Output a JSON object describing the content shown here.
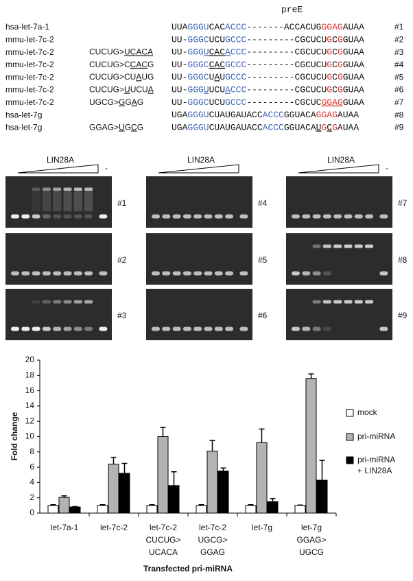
{
  "alignment": {
    "header": "preE",
    "rows": [
      {
        "name": "hsa-let-7a-1",
        "mutation": [],
        "label": "#1",
        "sequence": [
          {
            "text": "UUA"
          },
          {
            "text": "GGGU",
            "color": "#3d67b8"
          },
          {
            "text": "CAC"
          },
          {
            "text": "ACCC",
            "color": "#3d67b8"
          },
          {
            "text": "-------ACCACUG"
          },
          {
            "text": "GGAG",
            "color": "#e0302a"
          },
          {
            "text": "AUAA"
          }
        ]
      },
      {
        "name": "mmu-let-7c-2",
        "mutation": [],
        "label": "#2",
        "sequence": [
          {
            "text": "UU-"
          },
          {
            "text": "GGGC",
            "color": "#3d67b8"
          },
          {
            "text": "UCU"
          },
          {
            "text": "GCCC",
            "color": "#3d67b8"
          },
          {
            "text": "---------CGCUCU"
          },
          {
            "text": "G",
            "color": "#e0302a"
          },
          {
            "text": "C"
          },
          {
            "text": "G",
            "color": "#e0302a"
          },
          {
            "text": "GUAA"
          }
        ]
      },
      {
        "name": "mmu-let-7c-2",
        "mutation": [
          {
            "text": "CUCUG>"
          },
          {
            "text": "UCACA",
            "underline": true
          }
        ],
        "label": "#3",
        "sequence": [
          {
            "text": "UU-"
          },
          {
            "text": "GGG",
            "color": "#3d67b8"
          },
          {
            "text": "U",
            "color": "#3d67b8",
            "underline": true
          },
          {
            "text": "CAC",
            "underline": true
          },
          {
            "text": "A",
            "color": "#3d67b8",
            "underline": true
          },
          {
            "text": "CCC",
            "color": "#3d67b8"
          },
          {
            "text": "---------CGCUCU"
          },
          {
            "text": "G",
            "color": "#e0302a"
          },
          {
            "text": "C"
          },
          {
            "text": "G",
            "color": "#e0302a"
          },
          {
            "text": "GUAA"
          }
        ]
      },
      {
        "name": "mmu-let-7c-2",
        "mutation": [
          {
            "text": "CUCUG>C"
          },
          {
            "text": "CAC",
            "underline": true
          },
          {
            "text": "G"
          }
        ],
        "label": "#4",
        "sequence": [
          {
            "text": "UU-"
          },
          {
            "text": "GGGC",
            "color": "#3d67b8"
          },
          {
            "text": "CAC",
            "underline": true
          },
          {
            "text": "GCCC",
            "color": "#3d67b8"
          },
          {
            "text": "---------CGCUCU"
          },
          {
            "text": "G",
            "color": "#e0302a"
          },
          {
            "text": "C"
          },
          {
            "text": "G",
            "color": "#e0302a"
          },
          {
            "text": "GUAA"
          }
        ]
      },
      {
        "name": "mmu-let-7c-2",
        "mutation": [
          {
            "text": "CUCUG>CU"
          },
          {
            "text": "A",
            "underline": true
          },
          {
            "text": "UG"
          }
        ],
        "label": "#5",
        "sequence": [
          {
            "text": "UU-"
          },
          {
            "text": "GGGC",
            "color": "#3d67b8"
          },
          {
            "text": "U"
          },
          {
            "text": "A",
            "underline": true
          },
          {
            "text": "U"
          },
          {
            "text": "GCCC",
            "color": "#3d67b8"
          },
          {
            "text": "---------CGCUCU"
          },
          {
            "text": "G",
            "color": "#e0302a"
          },
          {
            "text": "C"
          },
          {
            "text": "G",
            "color": "#e0302a"
          },
          {
            "text": "GUAA"
          }
        ]
      },
      {
        "name": "mmu-let-7c-2",
        "mutation": [
          {
            "text": "CUCUG>"
          },
          {
            "text": "U",
            "underline": true
          },
          {
            "text": "UCU"
          },
          {
            "text": "A",
            "underline": true
          }
        ],
        "label": "#6",
        "sequence": [
          {
            "text": "UU-"
          },
          {
            "text": "GGG",
            "color": "#3d67b8"
          },
          {
            "text": "U",
            "color": "#3d67b8",
            "underline": true
          },
          {
            "text": "UCU"
          },
          {
            "text": "A",
            "color": "#3d67b8",
            "underline": true
          },
          {
            "text": "CCC",
            "color": "#3d67b8"
          },
          {
            "text": "---------CGCUCU"
          },
          {
            "text": "G",
            "color": "#e0302a"
          },
          {
            "text": "C"
          },
          {
            "text": "G",
            "color": "#e0302a"
          },
          {
            "text": "GUAA"
          }
        ]
      },
      {
        "name": "mmu-let-7c-2",
        "mutation": [
          {
            "text": "UGCG>"
          },
          {
            "text": "G",
            "underline": true
          },
          {
            "text": "G"
          },
          {
            "text": "A",
            "underline": true
          },
          {
            "text": "G"
          }
        ],
        "label": "#7",
        "sequence": [
          {
            "text": "UU-"
          },
          {
            "text": "GGGC",
            "color": "#3d67b8"
          },
          {
            "text": "UCU"
          },
          {
            "text": "GCCC",
            "color": "#3d67b8"
          },
          {
            "text": "---------CGCUC"
          },
          {
            "text": "GGAG",
            "color": "#e0302a",
            "underline": true
          },
          {
            "text": "GUAA"
          }
        ]
      },
      {
        "name": "hsa-let-7g",
        "mutation": [],
        "label": "#8",
        "sequence": [
          {
            "text": "UGA"
          },
          {
            "text": "GGGU",
            "color": "#3d67b8"
          },
          {
            "text": "CUAUGAUACC"
          },
          {
            "text": "ACCC",
            "color": "#3d67b8"
          },
          {
            "text": "GGUACA"
          },
          {
            "text": "GGAG",
            "color": "#e0302a"
          },
          {
            "text": "AUAA"
          }
        ]
      },
      {
        "name": "hsa-let-7g",
        "mutation": [
          {
            "text": "GGAG>"
          },
          {
            "text": "U",
            "underline": true
          },
          {
            "text": "G"
          },
          {
            "text": "C",
            "underline": true
          },
          {
            "text": "G"
          }
        ],
        "label": "#9",
        "sequence": [
          {
            "text": "UGA"
          },
          {
            "text": "GGGU",
            "color": "#3d67b8"
          },
          {
            "text": "CUAUGAUACC"
          },
          {
            "text": "ACCC",
            "color": "#3d67b8"
          },
          {
            "text": "GGUACA"
          },
          {
            "text": "U",
            "underline": true
          },
          {
            "text": "G",
            "color": "#e0302a"
          },
          {
            "text": "C",
            "underline": true
          },
          {
            "text": "G",
            "color": "#e0302a"
          },
          {
            "text": "AUAA"
          }
        ]
      }
    ]
  },
  "gels": {
    "columns": [
      {
        "title": "LIN28A",
        "control": "-",
        "panels": [
          "#1",
          "#2",
          "#3"
        ]
      },
      {
        "title": "LIN28A",
        "panels": [
          "#4",
          "#5",
          "#6"
        ]
      },
      {
        "title": "LIN28A",
        "control": "-",
        "panels": [
          "#7",
          "#8",
          "#9"
        ]
      }
    ]
  },
  "chart_data": {
    "type": "bar",
    "ylabel": "Fold change",
    "xlabel": "Transfected pri-miRNA",
    "categories": [
      [
        "let-7a-1"
      ],
      [
        "let-7c-2"
      ],
      [
        "let-7c-2",
        "CUCUG>",
        "UCACA"
      ],
      [
        "let-7c-2",
        "UGCG>",
        "GGAG"
      ],
      [
        "let-7g"
      ],
      [
        "let-7g",
        "GGAG>",
        "UGCG"
      ]
    ],
    "series": [
      {
        "name": [
          "mock"
        ],
        "color": "#ffffff",
        "values": [
          1,
          1,
          1,
          1,
          1,
          1
        ],
        "errors": [
          0.1,
          0.1,
          0.1,
          0.1,
          0.1,
          0.05
        ]
      },
      {
        "name": [
          "pri-miRNA"
        ],
        "color": "#b3b3b3",
        "values": [
          2.05,
          6.4,
          10,
          8.1,
          9.2,
          17.6
        ],
        "errors": [
          0.2,
          0.9,
          1.2,
          1.4,
          1.8,
          0.6
        ]
      },
      {
        "name": [
          "pri-miRNA",
          "+ LIN28A"
        ],
        "color": "#000000",
        "values": [
          0.8,
          5.2,
          3.6,
          5.5,
          1.5,
          4.3
        ],
        "errors": [
          0.05,
          1.3,
          1.8,
          0.4,
          0.4,
          2.6
        ]
      }
    ],
    "ylim": [
      0,
      20
    ],
    "yticks": [
      0,
      2,
      4,
      6,
      8,
      10,
      12,
      14,
      16,
      18,
      20
    ]
  }
}
